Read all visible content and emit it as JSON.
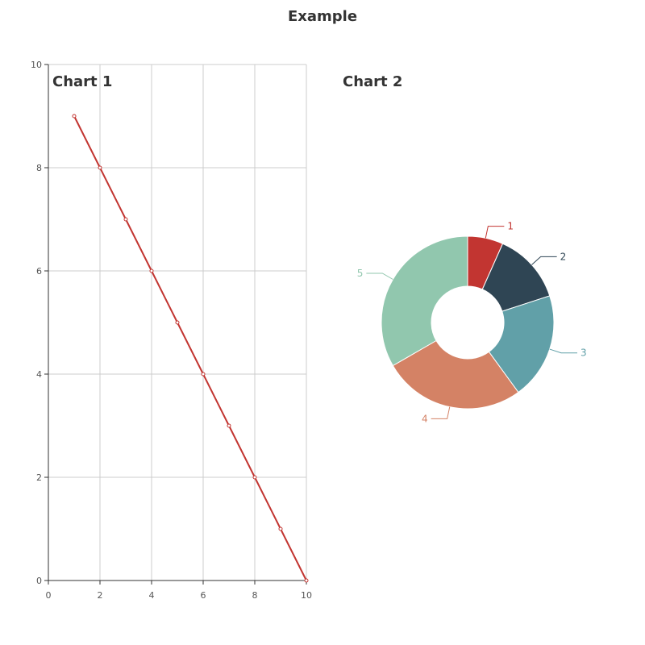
{
  "title": "Example",
  "chart_data": [
    {
      "type": "line",
      "title": "Chart 1",
      "x": [
        1,
        2,
        3,
        4,
        5,
        6,
        7,
        8,
        9,
        10
      ],
      "series": [
        {
          "values": [
            9,
            8,
            7,
            6,
            5,
            4,
            3,
            2,
            1,
            0
          ]
        }
      ],
      "xlim": [
        0,
        10
      ],
      "ylim": [
        0,
        10
      ],
      "xticks": [
        0,
        2,
        4,
        6,
        8,
        10
      ],
      "yticks": [
        0,
        2,
        4,
        6,
        8,
        10
      ],
      "grid": true,
      "line_color": "#c23531"
    },
    {
      "type": "pie",
      "title": "Chart 2",
      "donut": true,
      "categories": [
        "1",
        "2",
        "3",
        "4",
        "5"
      ],
      "values": [
        1,
        2,
        3,
        4,
        5
      ],
      "colors": [
        "#c23531",
        "#2f4554",
        "#61a0a8",
        "#d48265",
        "#91c7ae"
      ]
    }
  ]
}
